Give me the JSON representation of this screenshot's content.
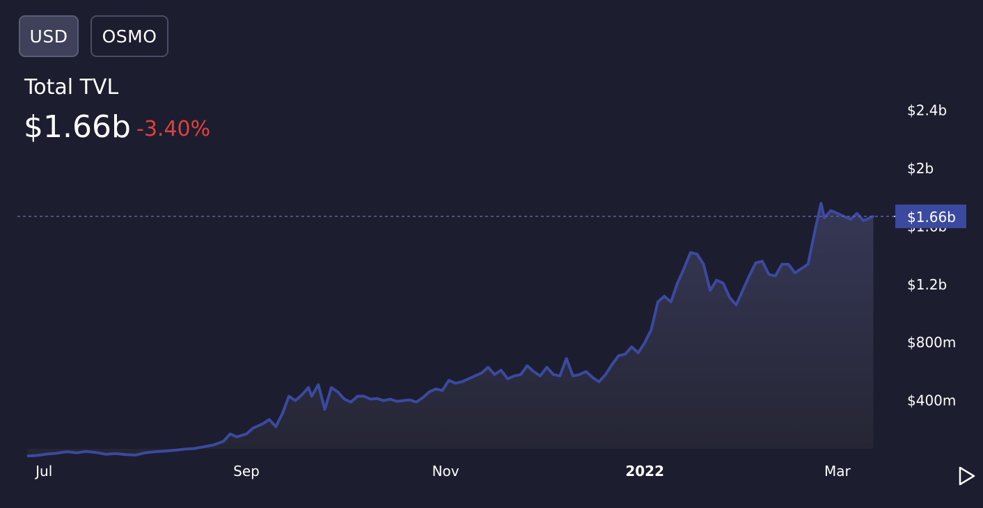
{
  "toggles": {
    "usd": "USD",
    "osmo": "OSMO"
  },
  "header": {
    "title": "Total TVL",
    "value": "$1.66b",
    "change": "-3.40%"
  },
  "colors": {
    "line": "#3b4a9e",
    "change_negative": "#e0413f",
    "marker_bg": "#3b4a9e"
  },
  "icons": {
    "play": "play-icon"
  },
  "chart_data": {
    "type": "area",
    "title": "Total TVL",
    "ylabel": "",
    "xlabel": "",
    "ylim": [
      0,
      2600
    ],
    "y_ticks": [
      {
        "v": 400,
        "label": "$400m"
      },
      {
        "v": 800,
        "label": "$800m"
      },
      {
        "v": 1200,
        "label": "$1.2b"
      },
      {
        "v": 1600,
        "label": "$1.6b"
      },
      {
        "v": 2000,
        "label": "$2b"
      },
      {
        "v": 2400,
        "label": "$2.4b"
      }
    ],
    "x_ticks": [
      {
        "date": "2021-07-01",
        "label": "Jul",
        "bold": false
      },
      {
        "date": "2021-09-01",
        "label": "Sep",
        "bold": false
      },
      {
        "date": "2021-11-01",
        "label": "Nov",
        "bold": false
      },
      {
        "date": "2022-01-01",
        "label": "2022",
        "bold": true
      },
      {
        "date": "2022-03-01",
        "label": "Mar",
        "bold": false
      }
    ],
    "current_value": 1660,
    "current_label": "$1.66b",
    "grid": false,
    "series": [
      {
        "values": [
          [
            "2021-06-26",
            8
          ],
          [
            "2021-06-29",
            12
          ],
          [
            "2021-07-02",
            22
          ],
          [
            "2021-07-05",
            28
          ],
          [
            "2021-07-08",
            38
          ],
          [
            "2021-07-11",
            30
          ],
          [
            "2021-07-14",
            40
          ],
          [
            "2021-07-17",
            32
          ],
          [
            "2021-07-20",
            20
          ],
          [
            "2021-07-23",
            25
          ],
          [
            "2021-07-26",
            18
          ],
          [
            "2021-07-29",
            15
          ],
          [
            "2021-08-01",
            30
          ],
          [
            "2021-08-04",
            38
          ],
          [
            "2021-08-07",
            42
          ],
          [
            "2021-08-10",
            48
          ],
          [
            "2021-08-13",
            55
          ],
          [
            "2021-08-16",
            60
          ],
          [
            "2021-08-19",
            72
          ],
          [
            "2021-08-22",
            85
          ],
          [
            "2021-08-25",
            110
          ],
          [
            "2021-08-27",
            160
          ],
          [
            "2021-08-29",
            140
          ],
          [
            "2021-09-01",
            160
          ],
          [
            "2021-09-03",
            200
          ],
          [
            "2021-09-06",
            230
          ],
          [
            "2021-09-08",
            260
          ],
          [
            "2021-09-10",
            210
          ],
          [
            "2021-09-12",
            300
          ],
          [
            "2021-09-14",
            420
          ],
          [
            "2021-09-16",
            390
          ],
          [
            "2021-09-18",
            430
          ],
          [
            "2021-09-20",
            480
          ],
          [
            "2021-09-21",
            420
          ],
          [
            "2021-09-23",
            500
          ],
          [
            "2021-09-25",
            330
          ],
          [
            "2021-09-27",
            480
          ],
          [
            "2021-09-29",
            450
          ],
          [
            "2021-10-01",
            400
          ],
          [
            "2021-10-03",
            380
          ],
          [
            "2021-10-05",
            420
          ],
          [
            "2021-10-07",
            420
          ],
          [
            "2021-10-09",
            400
          ],
          [
            "2021-10-11",
            405
          ],
          [
            "2021-10-13",
            390
          ],
          [
            "2021-10-15",
            400
          ],
          [
            "2021-10-17",
            385
          ],
          [
            "2021-10-19",
            390
          ],
          [
            "2021-10-21",
            395
          ],
          [
            "2021-10-23",
            380
          ],
          [
            "2021-10-25",
            410
          ],
          [
            "2021-10-27",
            450
          ],
          [
            "2021-10-29",
            470
          ],
          [
            "2021-10-31",
            460
          ],
          [
            "2021-11-02",
            530
          ],
          [
            "2021-11-04",
            510
          ],
          [
            "2021-11-06",
            520
          ],
          [
            "2021-11-08",
            540
          ],
          [
            "2021-11-10",
            560
          ],
          [
            "2021-11-12",
            580
          ],
          [
            "2021-11-14",
            620
          ],
          [
            "2021-11-16",
            570
          ],
          [
            "2021-11-18",
            600
          ],
          [
            "2021-11-20",
            540
          ],
          [
            "2021-11-22",
            560
          ],
          [
            "2021-11-24",
            570
          ],
          [
            "2021-11-26",
            630
          ],
          [
            "2021-11-28",
            590
          ],
          [
            "2021-11-30",
            560
          ],
          [
            "2021-12-02",
            620
          ],
          [
            "2021-12-04",
            570
          ],
          [
            "2021-12-06",
            560
          ],
          [
            "2021-12-08",
            680
          ],
          [
            "2021-12-10",
            560
          ],
          [
            "2021-12-12",
            570
          ],
          [
            "2021-12-14",
            590
          ],
          [
            "2021-12-16",
            550
          ],
          [
            "2021-12-18",
            520
          ],
          [
            "2021-12-20",
            570
          ],
          [
            "2021-12-22",
            640
          ],
          [
            "2021-12-24",
            700
          ],
          [
            "2021-12-26",
            710
          ],
          [
            "2021-12-28",
            760
          ],
          [
            "2021-12-30",
            720
          ],
          [
            "2022-01-01",
            790
          ],
          [
            "2022-01-03",
            880
          ],
          [
            "2022-01-05",
            1070
          ],
          [
            "2022-01-07",
            1110
          ],
          [
            "2022-01-09",
            1070
          ],
          [
            "2022-01-11",
            1200
          ],
          [
            "2022-01-13",
            1300
          ],
          [
            "2022-01-15",
            1410
          ],
          [
            "2022-01-17",
            1400
          ],
          [
            "2022-01-19",
            1330
          ],
          [
            "2022-01-21",
            1150
          ],
          [
            "2022-01-23",
            1220
          ],
          [
            "2022-01-25",
            1200
          ],
          [
            "2022-01-27",
            1100
          ],
          [
            "2022-01-29",
            1050
          ],
          [
            "2022-01-31",
            1150
          ],
          [
            "2022-02-02",
            1250
          ],
          [
            "2022-02-04",
            1340
          ],
          [
            "2022-02-06",
            1350
          ],
          [
            "2022-02-08",
            1260
          ],
          [
            "2022-02-10",
            1250
          ],
          [
            "2022-02-12",
            1330
          ],
          [
            "2022-02-14",
            1330
          ],
          [
            "2022-02-16",
            1270
          ],
          [
            "2022-02-18",
            1300
          ],
          [
            "2022-02-20",
            1330
          ],
          [
            "2022-02-22",
            1550
          ],
          [
            "2022-02-24",
            1750
          ],
          [
            "2022-02-25",
            1650
          ],
          [
            "2022-02-27",
            1700
          ],
          [
            "2022-03-01",
            1680
          ],
          [
            "2022-03-03",
            1660
          ],
          [
            "2022-03-05",
            1640
          ],
          [
            "2022-03-07",
            1680
          ],
          [
            "2022-03-09",
            1630
          ],
          [
            "2022-03-11",
            1650
          ],
          [
            "2022-03-12",
            1660
          ]
        ]
      }
    ]
  }
}
